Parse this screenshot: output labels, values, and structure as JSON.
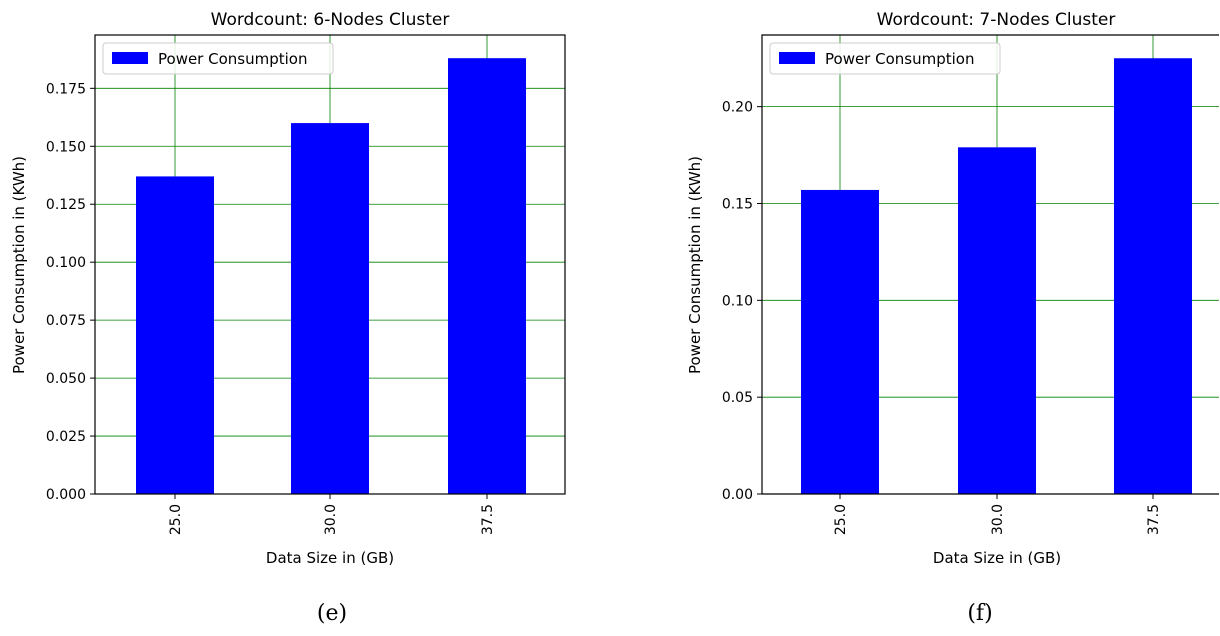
{
  "chart_data": [
    {
      "type": "bar",
      "title": "Wordcount: 6-Nodes Cluster",
      "xlabel": "Data Size in (GB)",
      "ylabel": "Power Consumption in (KWh)",
      "categories": [
        "25.0",
        "30.0",
        "37.5"
      ],
      "series": [
        {
          "name": "Power Consumption",
          "values": [
            0.137,
            0.16,
            0.188
          ],
          "color": "#0000ff"
        }
      ],
      "ylim": [
        0,
        0.198
      ],
      "yticks": [
        0.0,
        0.025,
        0.05,
        0.075,
        0.1,
        0.125,
        0.15,
        0.175
      ],
      "ytick_labels": [
        "0.000",
        "0.025",
        "0.050",
        "0.075",
        "0.100",
        "0.125",
        "0.150",
        "0.175"
      ],
      "grid": true,
      "grid_color": "#008000",
      "legend": "top-left",
      "caption": "(e)"
    },
    {
      "type": "bar",
      "title": "Wordcount: 7-Nodes Cluster",
      "xlabel": "Data Size in (GB)",
      "ylabel": "Power Consumption in (KWh)",
      "categories": [
        "25.0",
        "30.0",
        "37.5"
      ],
      "series": [
        {
          "name": "Power Consumption",
          "values": [
            0.157,
            0.179,
            0.225
          ],
          "color": "#0000ff"
        }
      ],
      "ylim": [
        0,
        0.237
      ],
      "yticks": [
        0.0,
        0.05,
        0.1,
        0.15,
        0.2
      ],
      "ytick_labels": [
        "0.00",
        "0.05",
        "0.10",
        "0.15",
        "0.20"
      ],
      "grid": true,
      "grid_color": "#008000",
      "legend": "top-left",
      "caption": "(f)"
    }
  ]
}
